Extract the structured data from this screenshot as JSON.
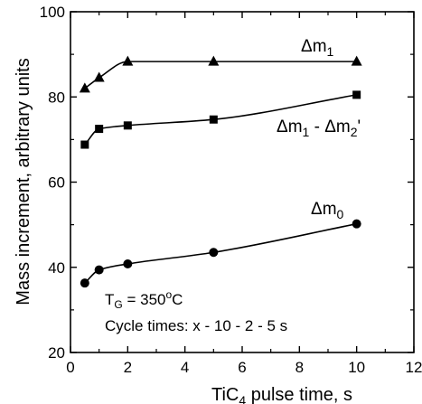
{
  "chart_data": {
    "type": "scatter",
    "title": "",
    "xlabel": "TiCl4 pulse time, s",
    "ylabel": "Mass increment, arbitrary units",
    "xlim": [
      0,
      12
    ],
    "ylim": [
      20,
      100
    ],
    "xticks": [
      0,
      2,
      4,
      6,
      8,
      10,
      12
    ],
    "yticks": [
      20,
      40,
      60,
      80,
      100
    ],
    "grid": false,
    "legend": "none",
    "series": [
      {
        "name": "Δm1",
        "marker": "triangle",
        "color": "#000000",
        "x": [
          0.5,
          1,
          2,
          5,
          10
        ],
        "y": [
          82,
          84.5,
          88.3,
          88.3,
          88.3
        ]
      },
      {
        "name": "Δm1 - Δm2'",
        "marker": "square",
        "color": "#000000",
        "x": [
          0.5,
          1,
          2,
          5,
          10
        ],
        "y": [
          68.8,
          72.5,
          73.3,
          74.7,
          80.5
        ]
      },
      {
        "name": "Δm0",
        "marker": "circle",
        "color": "#000000",
        "x": [
          0.5,
          1,
          2,
          5,
          10
        ],
        "y": [
          36.3,
          39.4,
          40.8,
          43.5,
          50.2
        ]
      }
    ],
    "annotations": [
      "TG = 350°C",
      "Cycle times: x - 10 - 2 - 5 s"
    ]
  },
  "labels": {
    "xlabel_main": "TiC",
    "xlabel_sub": "4",
    "xlabel_rest": " pulse time, s",
    "series0_main": "Δm",
    "series0_sub": "1",
    "series1_a": "Δm",
    "series1_a_sub": "1",
    "series1_mid": " - Δm",
    "series1_b_sub": "2",
    "series1_end": "'",
    "series2_main": "Δm",
    "series2_sub": "0",
    "annot1_main": "T",
    "annot1_sub": "G",
    "annot1_rest": " = 350",
    "annot1_deg": "o",
    "annot1_unit": "C",
    "annot2": "Cycle times: x - 10 - 2 - 5 s"
  }
}
